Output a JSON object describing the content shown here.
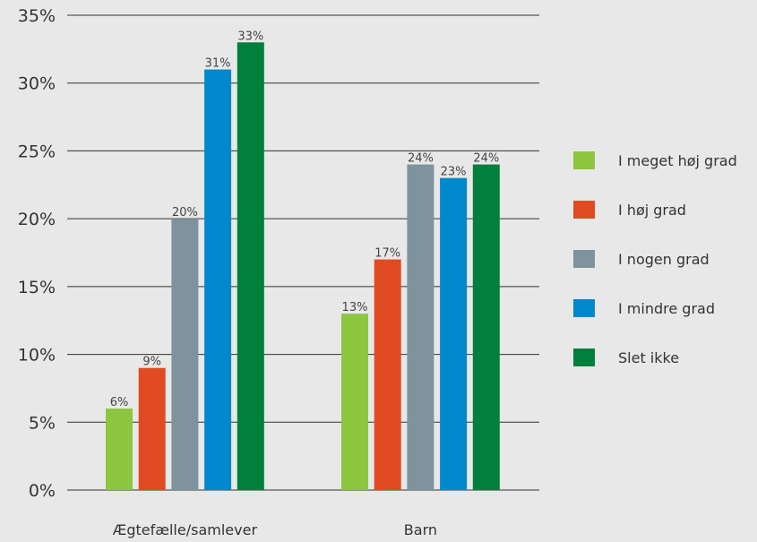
{
  "chart_data": {
    "type": "bar",
    "title": "",
    "xlabel": "",
    "ylabel": "",
    "ylim": [
      0,
      35
    ],
    "ytick_step": 5,
    "y_tick_labels": [
      "0%",
      "5%",
      "10%",
      "15%",
      "20%",
      "25%",
      "30%",
      "35%"
    ],
    "grid": true,
    "legend_position": "right",
    "categories": [
      "Ægtefælle/samlever",
      "Barn"
    ],
    "series": [
      {
        "name": "I meget høj grad",
        "color": "#8dc63f",
        "values": [
          6,
          13
        ],
        "labels": [
          "6%",
          "13%"
        ]
      },
      {
        "name": "I høj grad",
        "color": "#e04b22",
        "values": [
          9,
          17
        ],
        "labels": [
          "9%",
          "17%"
        ]
      },
      {
        "name": "I nogen grad",
        "color": "#7e939e",
        "values": [
          20,
          24
        ],
        "labels": [
          "20%",
          "24%"
        ]
      },
      {
        "name": "I mindre grad",
        "color": "#0088cc",
        "values": [
          31,
          23
        ],
        "labels": [
          "31%",
          "23%"
        ]
      },
      {
        "name": "Slet ikke",
        "color": "#00803c",
        "values": [
          33,
          24
        ],
        "labels": [
          "33%",
          "24%"
        ]
      }
    ]
  }
}
